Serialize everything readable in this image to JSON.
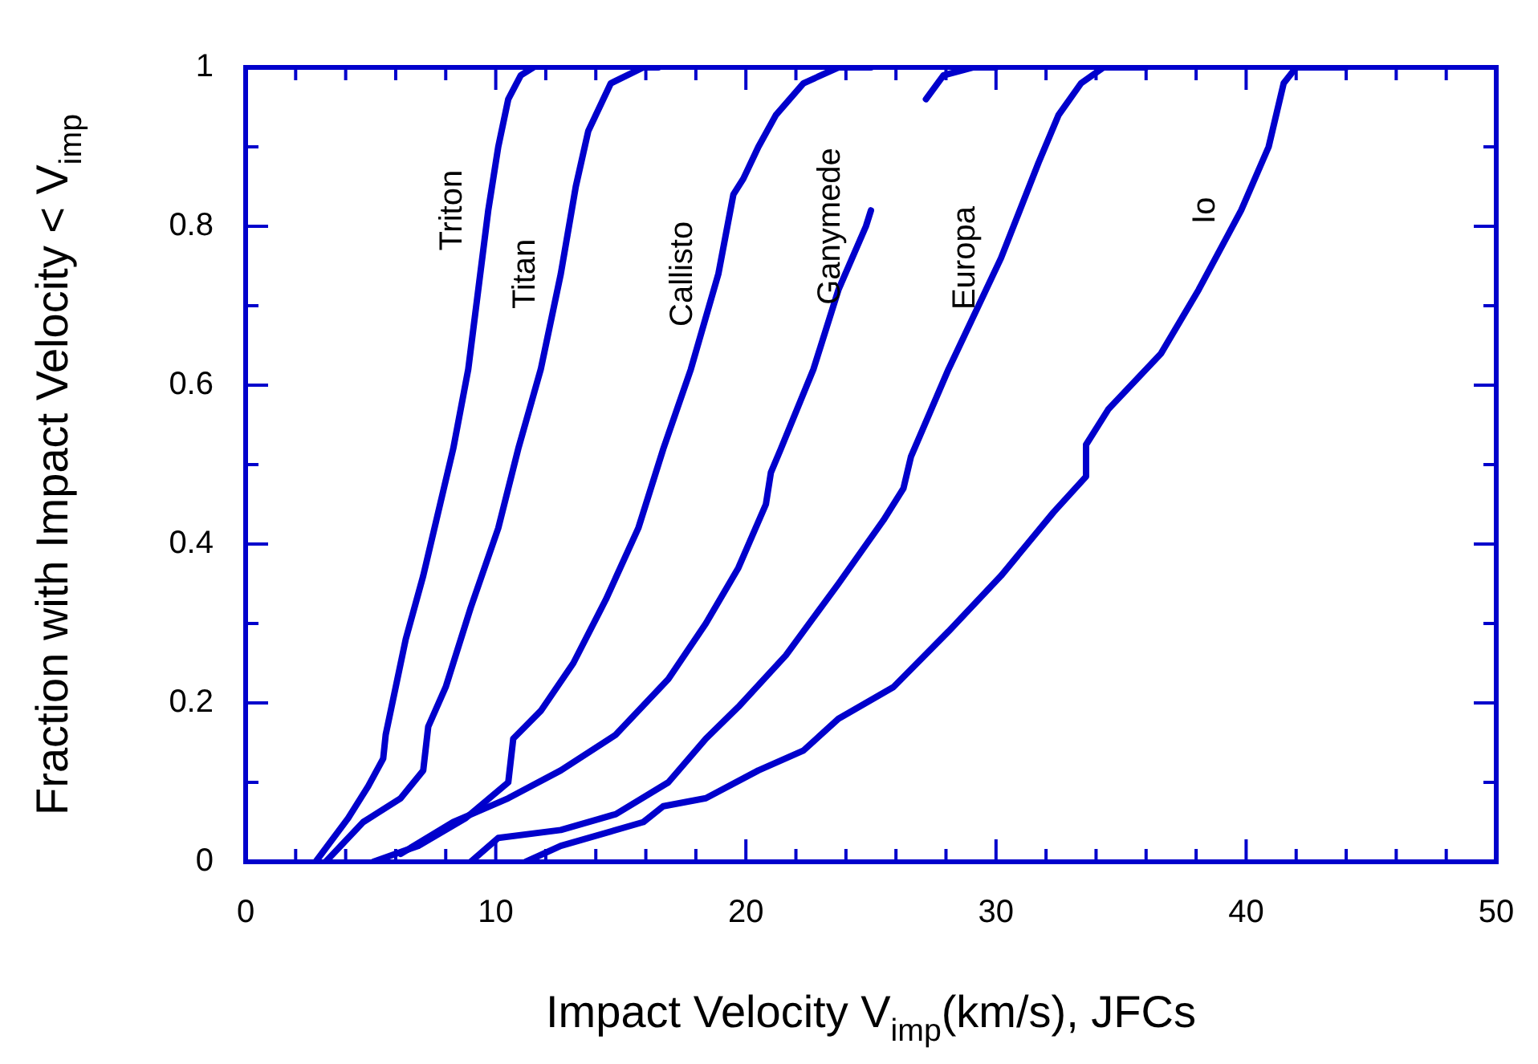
{
  "chart_data": {
    "type": "line",
    "xlabel": "Impact Velocity V$_{imp}$(km/s), JFCs",
    "ylabel": "Fraction with Impact Velocity < V$_{imp}$",
    "xlim": [
      0,
      50
    ],
    "ylim": [
      0,
      1
    ],
    "xticks": [
      0,
      {
        "value": 2,
        "label": null
      },
      {
        "value": 4,
        "label": null
      },
      {
        "value": 6,
        "label": null
      },
      {
        "value": 8,
        "label": null
      },
      10,
      {
        "value": 12,
        "label": null
      },
      {
        "value": 14,
        "label": null
      },
      {
        "value": 16,
        "label": null
      },
      {
        "value": 18,
        "label": null
      },
      20,
      {
        "value": 22,
        "label": null
      },
      {
        "value": 24,
        "label": null
      },
      {
        "value": 26,
        "label": null
      },
      {
        "value": 28,
        "label": null
      },
      30,
      {
        "value": 32,
        "label": null
      },
      {
        "value": 34,
        "label": null
      },
      {
        "value": 36,
        "label": null
      },
      {
        "value": 38,
        "label": null
      },
      40,
      {
        "value": 42,
        "label": null
      },
      {
        "value": 44,
        "label": null
      },
      {
        "value": 46,
        "label": null
      },
      {
        "value": 48,
        "label": null
      },
      50
    ],
    "yticks": [
      0,
      {
        "value": 0.1,
        "label": null
      },
      0.2,
      {
        "value": 0.3,
        "label": null
      },
      0.4,
      {
        "value": 0.5,
        "label": null
      },
      0.6,
      {
        "value": 0.7,
        "label": null
      },
      0.8,
      {
        "value": 0.9,
        "label": null
      },
      1
    ],
    "grid": false,
    "legend": false,
    "marker": "none",
    "line_style": "solid",
    "series": [
      {
        "name": "Triton",
        "color": "#0000cc",
        "x": [
          2.8,
          4.1,
          4.9,
          5.5,
          5.6,
          6.0,
          6.4,
          7.1,
          7.7,
          8.3,
          8.9,
          9.3,
          9.7,
          10.1,
          10.5,
          11.0,
          11.5
        ],
        "values": [
          0,
          0.055,
          0.095,
          0.13,
          0.16,
          0.22,
          0.28,
          0.36,
          0.44,
          0.52,
          0.62,
          0.72,
          0.82,
          0.9,
          0.96,
          0.99,
          1
        ]
      },
      {
        "name": "Titan",
        "color": "#0000cc",
        "x": [
          3.2,
          4.7,
          6.2,
          7.1,
          7.3,
          8.0,
          9.0,
          10.1,
          10.9,
          11.8,
          12.6,
          13.2,
          13.7,
          14.6,
          15.9,
          16.5
        ],
        "values": [
          0,
          0.05,
          0.08,
          0.115,
          0.17,
          0.22,
          0.32,
          0.42,
          0.52,
          0.62,
          0.74,
          0.85,
          0.92,
          0.98,
          1,
          1
        ]
      },
      {
        "name": "Callisto",
        "color": "#0000cc",
        "x": [
          5.1,
          6.9,
          8.8,
          10.5,
          10.7,
          11.8,
          13.1,
          14.4,
          15.7,
          16.7,
          17.8,
          18.9,
          19.5,
          19.9,
          20.5,
          21.2,
          22.3,
          23.7,
          25
        ],
        "values": [
          0,
          0.02,
          0.055,
          0.1,
          0.155,
          0.19,
          0.25,
          0.33,
          0.42,
          0.52,
          0.62,
          0.74,
          0.84,
          0.86,
          0.9,
          0.94,
          0.98,
          1,
          1
        ]
      },
      {
        "name": "Ganymede",
        "color": "#0000cc",
        "x": [
          6.2,
          8.3,
          10.5,
          12.6,
          14.8,
          16.9,
          18.4,
          19.7,
          20.8,
          21.0,
          21.4,
          22.7,
          23.7,
          24.8,
          25.0,
          26.0,
          27.2,
          27.9,
          29.1,
          30
        ],
        "values": [
          0.01,
          0.05,
          0.08,
          0.115,
          0.16,
          0.23,
          0.3,
          0.37,
          0.45,
          0.49,
          0.52,
          0.62,
          0.72,
          0.8,
          0.82,
          null,
          0.96,
          0.99,
          1,
          1
        ]
      },
      {
        "name": "Europa",
        "color": "#0000cc",
        "x": [
          9.0,
          10.1,
          12.6,
          14.8,
          16.9,
          18.4,
          19.7,
          21.6,
          23.7,
          25.5,
          26.3,
          26.6,
          28.1,
          30.2,
          31.7,
          32.5,
          33.4,
          34.3,
          36
        ],
        "values": [
          0,
          0.03,
          0.04,
          0.06,
          0.1,
          0.155,
          0.195,
          0.26,
          0.35,
          0.43,
          0.47,
          0.51,
          0.62,
          0.76,
          0.88,
          0.94,
          0.98,
          1,
          1
        ]
      },
      {
        "name": "Io",
        "color": "#0000cc",
        "x": [
          11.2,
          12.6,
          15.9,
          16.7,
          18.4,
          20.5,
          22.3,
          23.7,
          25.9,
          28.1,
          30.2,
          32.3,
          33.6,
          33.6,
          34.5,
          36.6,
          38.1,
          39.8,
          40.9,
          41.5,
          42,
          44
        ],
        "values": [
          0,
          0.02,
          0.05,
          0.07,
          0.08,
          0.115,
          0.14,
          0.18,
          0.22,
          0.29,
          0.36,
          0.44,
          0.485,
          0.525,
          0.57,
          0.64,
          0.72,
          0.82,
          0.9,
          0.98,
          1,
          1
        ]
      }
    ]
  }
}
